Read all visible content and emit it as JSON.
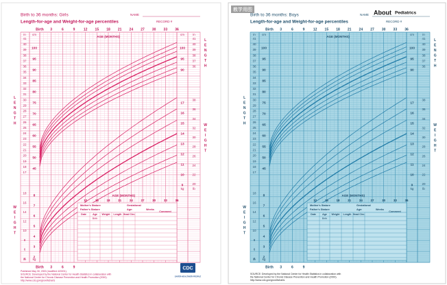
{
  "panels": [
    {
      "title": "Birth to 36 months: Girls",
      "subtitle": "Length-for-age and Weight-for-age percentiles",
      "name_label": "NAME",
      "record_label": "RECORD #",
      "age_top": [
        "Birth",
        3,
        6,
        9,
        12,
        15,
        18,
        21,
        24,
        27,
        30,
        33,
        36
      ],
      "age_label": "AGE (MONTHS)",
      "age_lower": [
        12,
        15,
        18,
        21,
        24,
        27,
        30,
        33,
        36
      ],
      "age_bottom": [
        "Birth",
        3,
        6,
        9
      ],
      "length_label": "LENGTH",
      "weight_label": "WEIGHT",
      "unit_in": "in",
      "unit_cm": "cm",
      "unit_kg": "kg",
      "unit_lb": "lb",
      "length_in_left": [
        41,
        40,
        39,
        38,
        37,
        36,
        35,
        34,
        33,
        32,
        31,
        30,
        29,
        28,
        27,
        26,
        25,
        24,
        23,
        22,
        21,
        20,
        19,
        18,
        17
      ],
      "length_cm_left": [
        100,
        95,
        90,
        85,
        80,
        75,
        70,
        65,
        60,
        55,
        50,
        45
      ],
      "length_cm_right": [
        100,
        95,
        90
      ],
      "length_in_right": [
        41,
        40,
        39,
        38,
        37,
        36
      ],
      "weight_kg_left": [
        8,
        7,
        6,
        5,
        4,
        3,
        2
      ],
      "weight_lb_left": [
        18,
        16,
        14,
        12,
        10,
        8,
        6,
        4
      ],
      "weight_kg_right": [
        17,
        16,
        15,
        14,
        13,
        12,
        11,
        10,
        9
      ],
      "weight_lb_right": [
        38,
        36,
        34,
        32,
        30,
        28,
        26,
        24,
        22,
        20
      ],
      "table": {
        "mother": "Mother's Stature",
        "father": "Father's Stature",
        "gestational": "Gestational",
        "age": "Age:",
        "weeks": "Weeks",
        "comment": "Comment",
        "columns": [
          "Date",
          "Age",
          "Weight",
          "Length",
          "Head Circ."
        ],
        "birth": "Birth"
      },
      "footnotes": [
        "Published May 30, 2000 (modified 4/20/01).",
        "SOURCE: Developed by the National Center for Health Statistics in collaboration with",
        "the National Center for Chronic Disease Prevention and Health Promotion (2000).",
        "http://www.cdc.gov/growthcharts"
      ],
      "logo": "CDC",
      "logo_sub": "SAFER·HEALTHIER·PEOPLE"
    },
    {
      "watermark": "教学用图",
      "title": "Birth to 36 months: Boys",
      "subtitle": "Length-for-age and Weight-for-age percentiles",
      "name_label": "NAME",
      "record_label": "RECORD #",
      "logo_about": "About",
      "logo_pediatrics": "Pediatrics",
      "age_top": [
        "Birth",
        3,
        6,
        9,
        12,
        15,
        18,
        21,
        24,
        27,
        30,
        33,
        36
      ],
      "age_label": "AGE (MONTHS)",
      "age_lower": [
        12,
        15,
        18,
        21,
        24,
        27,
        30,
        33,
        36
      ],
      "age_bottom": [
        "Birth",
        3,
        6,
        9
      ],
      "length_label": "LENGTH",
      "weight_label": "WEIGHT",
      "unit_in": "in",
      "unit_cm": "cm",
      "unit_kg": "kg",
      "unit_lb": "lb",
      "length_in_left": [
        41,
        40,
        39,
        38,
        37,
        36,
        35,
        34,
        33,
        32,
        31,
        30,
        29,
        28,
        27,
        26,
        25,
        24,
        23,
        22,
        21,
        20,
        19,
        18,
        17
      ],
      "length_cm_left": [
        100,
        95,
        90,
        85,
        80,
        75,
        70,
        65,
        60,
        55,
        50,
        45
      ],
      "length_cm_right": [
        100,
        95,
        90
      ],
      "length_in_right": [
        41,
        40,
        39,
        38,
        37,
        36
      ],
      "weight_kg_left": [
        8,
        7,
        6,
        5,
        4,
        3,
        2
      ],
      "weight_lb_left": [
        18,
        16,
        14,
        12,
        10,
        8,
        6,
        4
      ],
      "weight_kg_right": [
        17,
        16,
        15,
        14,
        13,
        12,
        11,
        10,
        9
      ],
      "weight_lb_right": [
        38,
        36,
        34,
        32,
        30,
        28,
        26,
        24,
        22,
        20
      ],
      "table": {
        "mother": "Mother's Stature",
        "father": "Father's Stature",
        "gestational": "Gestational",
        "age": "Age:",
        "weeks": "Weeks",
        "comment": "Comment",
        "columns": [
          "Date",
          "Age",
          "Weight",
          "Length",
          "Head Circ."
        ],
        "birth": "Birth"
      },
      "footnotes": [
        "SOURCE: Developed by the National Center for Health Statistics in collaboration with",
        "the National Center for Chronic Disease Prevention and Health Promotion (2000).",
        "http://www.cdc.gov/growthcharts"
      ]
    }
  ]
}
